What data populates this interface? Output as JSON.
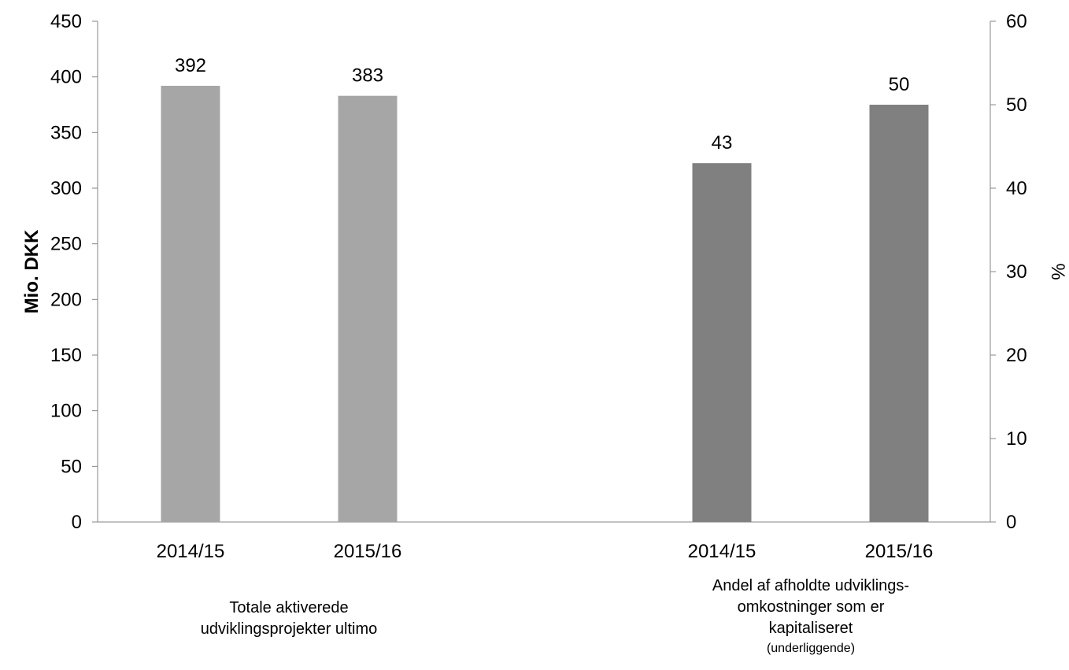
{
  "chart_data": {
    "type": "bar",
    "y_left": {
      "label": "Mio. DKK",
      "min": 0,
      "max": 450,
      "step": 50
    },
    "y_right": {
      "label": "%",
      "min": 0,
      "max": 60,
      "step": 10
    },
    "grid": false,
    "legend": "none",
    "groups": [
      {
        "label_lines": [
          "Totale aktiverede",
          "udviklingsprojekter ultimo"
        ],
        "sublabel": "",
        "axis": "left",
        "color": "#a6a6a6",
        "bars": [
          {
            "category": "2014/15",
            "value": 392
          },
          {
            "category": "2015/16",
            "value": 383
          }
        ]
      },
      {
        "label_lines": [
          "Andel af afholdte udviklings-",
          "omkostninger som er",
          "kapitaliseret"
        ],
        "sublabel": "(underliggende)",
        "axis": "right",
        "color": "#808080",
        "bars": [
          {
            "category": "2014/15",
            "value": 43
          },
          {
            "category": "2015/16",
            "value": 50
          }
        ]
      }
    ]
  }
}
